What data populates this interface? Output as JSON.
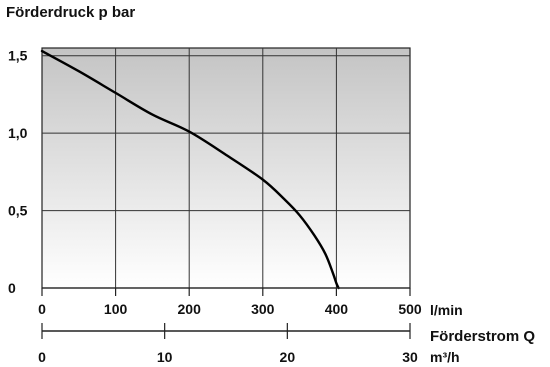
{
  "chart_data": {
    "type": "line",
    "ylabel": "Förderdruck p bar",
    "y_ticks": [
      "0",
      "0,5",
      "1,0",
      "1,5"
    ],
    "y_tick_values": [
      0,
      0.5,
      1.0,
      1.5
    ],
    "ylim": [
      0,
      1.55
    ],
    "x_primary": {
      "ticks": [
        "0",
        "100",
        "200",
        "300",
        "400",
        "500"
      ],
      "tick_values": [
        0,
        100,
        200,
        300,
        400,
        500
      ],
      "unit": "l/min",
      "range": [
        0,
        500
      ]
    },
    "x_secondary": {
      "label": "Förderstrom Q",
      "ticks": [
        "0",
        "10",
        "20",
        "30"
      ],
      "tick_values": [
        0,
        10,
        20,
        30
      ],
      "unit": "m³/h",
      "range": [
        0,
        30
      ]
    },
    "grid": true,
    "background": "vertical gradient, grey to white",
    "series": [
      {
        "color": "#000000",
        "x": [
          0,
          50,
          100,
          150,
          200,
          250,
          300,
          330,
          350,
          370,
          385,
          395,
          400,
          403
        ],
        "y": [
          1.53,
          1.4,
          1.26,
          1.12,
          1.01,
          0.86,
          0.7,
          0.57,
          0.47,
          0.34,
          0.22,
          0.1,
          0.03,
          0.0
        ]
      }
    ]
  }
}
